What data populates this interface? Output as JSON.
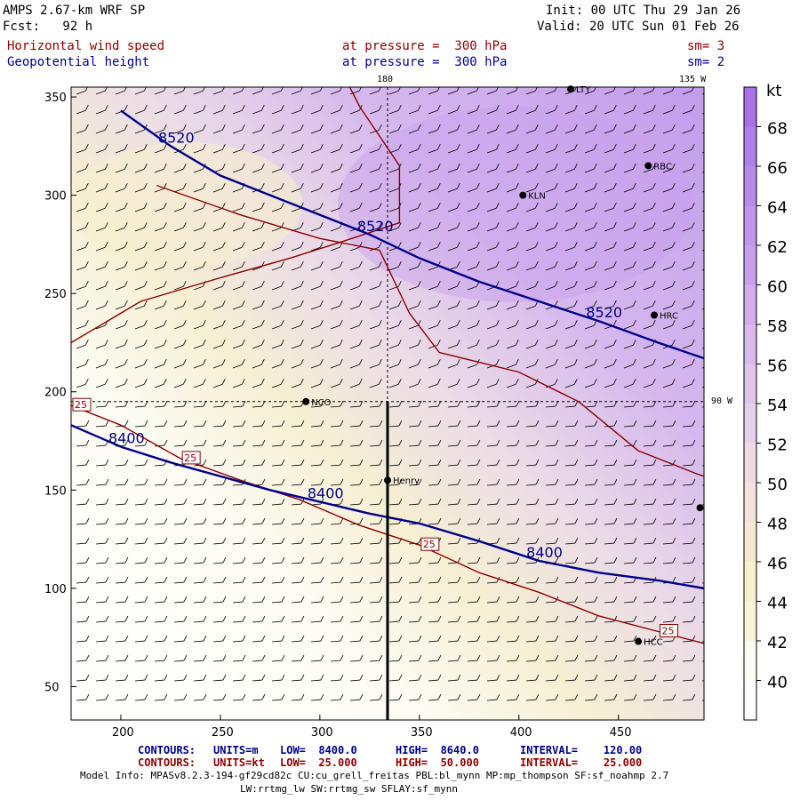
{
  "header": {
    "model": "AMPS 2.67-km WRF SP",
    "init": "Init: 00 UTC Thu 29 Jan 26",
    "fcst": "Fcst:   92 h",
    "valid": "Valid: 20 UTC Sun 01 Feb 26",
    "field1": {
      "name": "Horizontal wind speed",
      "level": "at pressure =  300 hPa",
      "sm": "sm= 3"
    },
    "field2": {
      "name": "Geopotential height",
      "level": "at pressure =  300 hPa",
      "sm": "sm= 2"
    }
  },
  "map_labels": {
    "lon_180": "180",
    "lon_135w": "135 W",
    "lon_90w": "90 W"
  },
  "stations": [
    {
      "id": "LTY",
      "x": 426,
      "y": 354
    },
    {
      "id": "RBC",
      "x": 465,
      "y": 315
    },
    {
      "id": "KLN",
      "x": 402,
      "y": 300
    },
    {
      "id": "HRC",
      "x": 468,
      "y": 239
    },
    {
      "id": "NCO",
      "x": 293,
      "y": 195
    },
    {
      "id": "Henry",
      "x": 334,
      "y": 155
    },
    {
      "id": "HCC",
      "x": 460,
      "y": 73
    },
    {
      "id": "",
      "x": 491,
      "y": 141
    }
  ],
  "footer": {
    "c1_label": "CONTOURS:",
    "c1_units": "UNITS=m",
    "c1_low": "LOW=  8400.0",
    "c1_high": "HIGH=  8640.0",
    "c1_int": "INTERVAL=    120.00",
    "c2_label": "CONTOURS:",
    "c2_units": "UNITS=kt",
    "c2_low": "LOW=  25.000",
    "c2_high": "HIGH=  50.000",
    "c2_int": "INTERVAL=    25.000",
    "model_info": "Model Info: MPASv8.2.3-194-gf29cd82c CU:cu_grell_freitas PBL:bl_mynn MP:mp_thompson SF:sf_noahmp 2.7",
    "model_info2": "LW:rrtmg_lw SW:rrtmg_sw SFLAY:sf_mynn"
  },
  "colorbar": {
    "unit": "kt",
    "ticks": [
      40,
      42,
      44,
      46,
      48,
      50,
      52,
      54,
      56,
      58,
      60,
      62,
      64,
      66,
      68
    ],
    "colors": [
      "#fbfbf6",
      "#f8f4d8",
      "#f6f0cc",
      "#f4ead4",
      "#f0e4dc",
      "#ecdce4",
      "#e6d2e8",
      "#e0c6ec",
      "#d8baee",
      "#d0adee",
      "#c8a1ee",
      "#c096ec",
      "#b88aea",
      "#b07ee8",
      "#a872e6"
    ]
  },
  "chart_data": {
    "type": "contour",
    "xlim": [
      175,
      493
    ],
    "ylim": [
      33,
      355
    ],
    "xticks": [
      200,
      250,
      300,
      350,
      400,
      450
    ],
    "yticks": [
      50,
      100,
      150,
      200,
      250,
      300,
      350
    ],
    "height_contours": [
      {
        "label": "8520",
        "points": [
          [
            200,
            343
          ],
          [
            225,
            325
          ],
          [
            250,
            310
          ],
          [
            275,
            300
          ],
          [
            300,
            290
          ],
          [
            325,
            280
          ],
          [
            350,
            268
          ],
          [
            380,
            256
          ],
          [
            410,
            246
          ],
          [
            440,
            236
          ],
          [
            470,
            225
          ],
          [
            493,
            217
          ]
        ]
      },
      {
        "label": "8400",
        "points": [
          [
            175,
            183
          ],
          [
            200,
            172
          ],
          [
            225,
            164
          ],
          [
            250,
            157
          ],
          [
            275,
            150
          ],
          [
            300,
            144
          ],
          [
            325,
            138
          ],
          [
            350,
            133
          ],
          [
            380,
            124
          ],
          [
            410,
            114
          ],
          [
            440,
            108
          ],
          [
            470,
            104
          ],
          [
            493,
            100
          ]
        ]
      }
    ],
    "speed_contours": [
      {
        "label": "25",
        "points": [
          [
            175,
            193
          ],
          [
            200,
            183
          ],
          [
            230,
            166
          ],
          [
            260,
            155
          ],
          [
            290,
            145
          ],
          [
            320,
            132
          ],
          [
            350,
            122
          ],
          [
            380,
            108
          ],
          [
            410,
            98
          ],
          [
            440,
            86
          ],
          [
            470,
            78
          ],
          [
            493,
            72
          ]
        ]
      },
      {
        "label": "50",
        "points": [
          [
            218,
            305
          ],
          [
            260,
            290
          ],
          [
            300,
            278
          ],
          [
            330,
            272
          ],
          [
            345,
            240
          ],
          [
            360,
            220
          ],
          [
            400,
            210
          ],
          [
            430,
            195
          ],
          [
            460,
            170
          ],
          [
            490,
            158
          ],
          [
            493,
            157
          ]
        ]
      },
      {
        "label": "50",
        "points": [
          [
            175,
            225
          ],
          [
            210,
            246
          ],
          [
            250,
            258
          ],
          [
            285,
            268
          ],
          [
            310,
            276
          ],
          [
            340,
            286
          ],
          [
            340,
            315
          ],
          [
            320,
            345
          ],
          [
            315,
            355
          ]
        ]
      }
    ],
    "speed_contour_labels": [
      "25",
      "25",
      "25",
      "25"
    ],
    "meridian_180_x": 334,
    "parallel_y": 195,
    "cross_section": {
      "x": 334,
      "y0": 33,
      "y1": 195
    }
  }
}
